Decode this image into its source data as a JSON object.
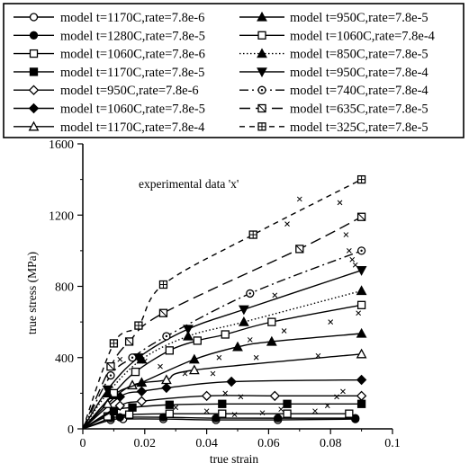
{
  "chart_data": {
    "type": "scatter",
    "title": "",
    "xlabel": "true strain",
    "ylabel": "true stress (MPa)",
    "xlim": [
      0,
      0.1
    ],
    "ylim": [
      0,
      1600
    ],
    "xticks": [
      "0",
      "0.02",
      "0.04",
      "0.06",
      "0.08",
      "0.1"
    ],
    "yticks": [
      "0",
      "400",
      "800",
      "1200",
      "1600"
    ],
    "grid": false,
    "legend_position": "top",
    "annotation": "experimental data 'x'",
    "series": [
      {
        "name": "model t=1170C,rate=7.8e-6",
        "marker": "circle-open",
        "line": "solid",
        "x": [
          0,
          0.009,
          0.013,
          0.026,
          0.043,
          0.063,
          0.088
        ],
        "y": [
          0,
          50,
          55,
          55,
          50,
          50,
          55
        ]
      },
      {
        "name": "model t=1280C,rate=7.8e-5",
        "marker": "circle-filled",
        "line": "solid",
        "x": [
          0,
          0.009,
          0.012,
          0.026,
          0.043,
          0.063,
          0.088
        ],
        "y": [
          0,
          60,
          65,
          65,
          60,
          60,
          60
        ]
      },
      {
        "name": "model t=1060C,rate=7.8e-6",
        "marker": "square-open",
        "line": "solid",
        "x": [
          0,
          0.008,
          0.015,
          0.028,
          0.045,
          0.066,
          0.086
        ],
        "y": [
          0,
          70,
          80,
          85,
          85,
          85,
          85
        ]
      },
      {
        "name": "model t=1170C,rate=7.8e-5",
        "marker": "square-filled",
        "line": "solid",
        "x": [
          0,
          0.01,
          0.016,
          0.028,
          0.045,
          0.066,
          0.09
        ],
        "y": [
          0,
          100,
          120,
          135,
          140,
          140,
          140
        ]
      },
      {
        "name": "model t=950C,rate=7.8e-6",
        "marker": "diamond-open",
        "line": "solid",
        "x": [
          0,
          0.012,
          0.019,
          0.04,
          0.062,
          0.09
        ],
        "y": [
          0,
          130,
          155,
          185,
          185,
          185
        ]
      },
      {
        "name": "model t=1060C,rate=7.8e-5",
        "marker": "diamond-filled",
        "line": "solid",
        "x": [
          0,
          0.012,
          0.019,
          0.027,
          0.048,
          0.09
        ],
        "y": [
          0,
          180,
          210,
          230,
          265,
          275
        ]
      },
      {
        "name": "model t=1170C,rate=7.8e-4",
        "marker": "triangle-open",
        "line": "solid",
        "x": [
          0,
          0.008,
          0.016,
          0.027,
          0.036,
          0.09
        ],
        "y": [
          0,
          140,
          245,
          275,
          330,
          420
        ]
      },
      {
        "name": "model t=950C,rate=7.8e-5",
        "marker": "triangle-filled",
        "line": "solid",
        "x": [
          0,
          0.01,
          0.019,
          0.036,
          0.05,
          0.061,
          0.09
        ],
        "y": [
          0,
          190,
          260,
          390,
          460,
          490,
          535
        ]
      },
      {
        "name": "model t=1060C,rate=7.8e-4",
        "marker": "square-open",
        "line": "solid",
        "x": [
          0,
          0.01,
          0.017,
          0.028,
          0.037,
          0.046,
          0.061,
          0.09
        ],
        "y": [
          0,
          200,
          320,
          440,
          495,
          530,
          600,
          695
        ]
      },
      {
        "name": "model t=850C,rate=7.8e-5",
        "marker": "triangle-filled",
        "line": "dotted",
        "x": [
          0,
          0.008,
          0.019,
          0.034,
          0.052,
          0.09
        ],
        "y": [
          0,
          200,
          390,
          520,
          600,
          775
        ]
      },
      {
        "name": "model t=950C,rate=7.8e-4",
        "marker": "triangle-down-filled",
        "line": "solid",
        "x": [
          0,
          0.008,
          0.018,
          0.034,
          0.052,
          0.09
        ],
        "y": [
          0,
          220,
          400,
          560,
          670,
          890
        ]
      },
      {
        "name": "model t=740C,rate=7.8e-4",
        "marker": "circle-dot",
        "line": "dash-dot",
        "x": [
          0,
          0.009,
          0.016,
          0.027,
          0.054,
          0.09
        ],
        "y": [
          0,
          300,
          400,
          520,
          760,
          1000
        ]
      },
      {
        "name": "model t=635C,rate=7.8e-5",
        "marker": "square-slash",
        "line": "long-dash",
        "x": [
          0,
          0.009,
          0.015,
          0.026,
          0.07,
          0.09
        ],
        "y": [
          0,
          350,
          490,
          650,
          1010,
          1190
        ]
      },
      {
        "name": "model t=325C,rate=7.8e-5",
        "marker": "square-plus",
        "line": "dashed",
        "x": [
          0,
          0.01,
          0.018,
          0.026,
          0.055,
          0.09
        ],
        "y": [
          0,
          480,
          580,
          810,
          1090,
          1400
        ]
      }
    ],
    "experimental_x": {
      "marker": "x",
      "x": [
        0.012,
        0.02,
        0.025,
        0.033,
        0.042,
        0.046,
        0.051,
        0.056,
        0.062,
        0.066,
        0.07,
        0.076,
        0.083,
        0.085,
        0.086,
        0.087,
        0.088,
        0.03,
        0.04,
        0.049,
        0.058,
        0.064,
        0.075,
        0.079,
        0.082,
        0.084,
        0.044,
        0.054,
        0.065,
        0.08,
        0.089
      ],
      "y": [
        390,
        380,
        350,
        310,
        310,
        200,
        180,
        400,
        750,
        1150,
        1290,
        410,
        1270,
        1090,
        1000,
        950,
        920,
        120,
        100,
        80,
        90,
        110,
        100,
        130,
        180,
        210,
        400,
        500,
        550,
        600,
        650
      ]
    }
  }
}
